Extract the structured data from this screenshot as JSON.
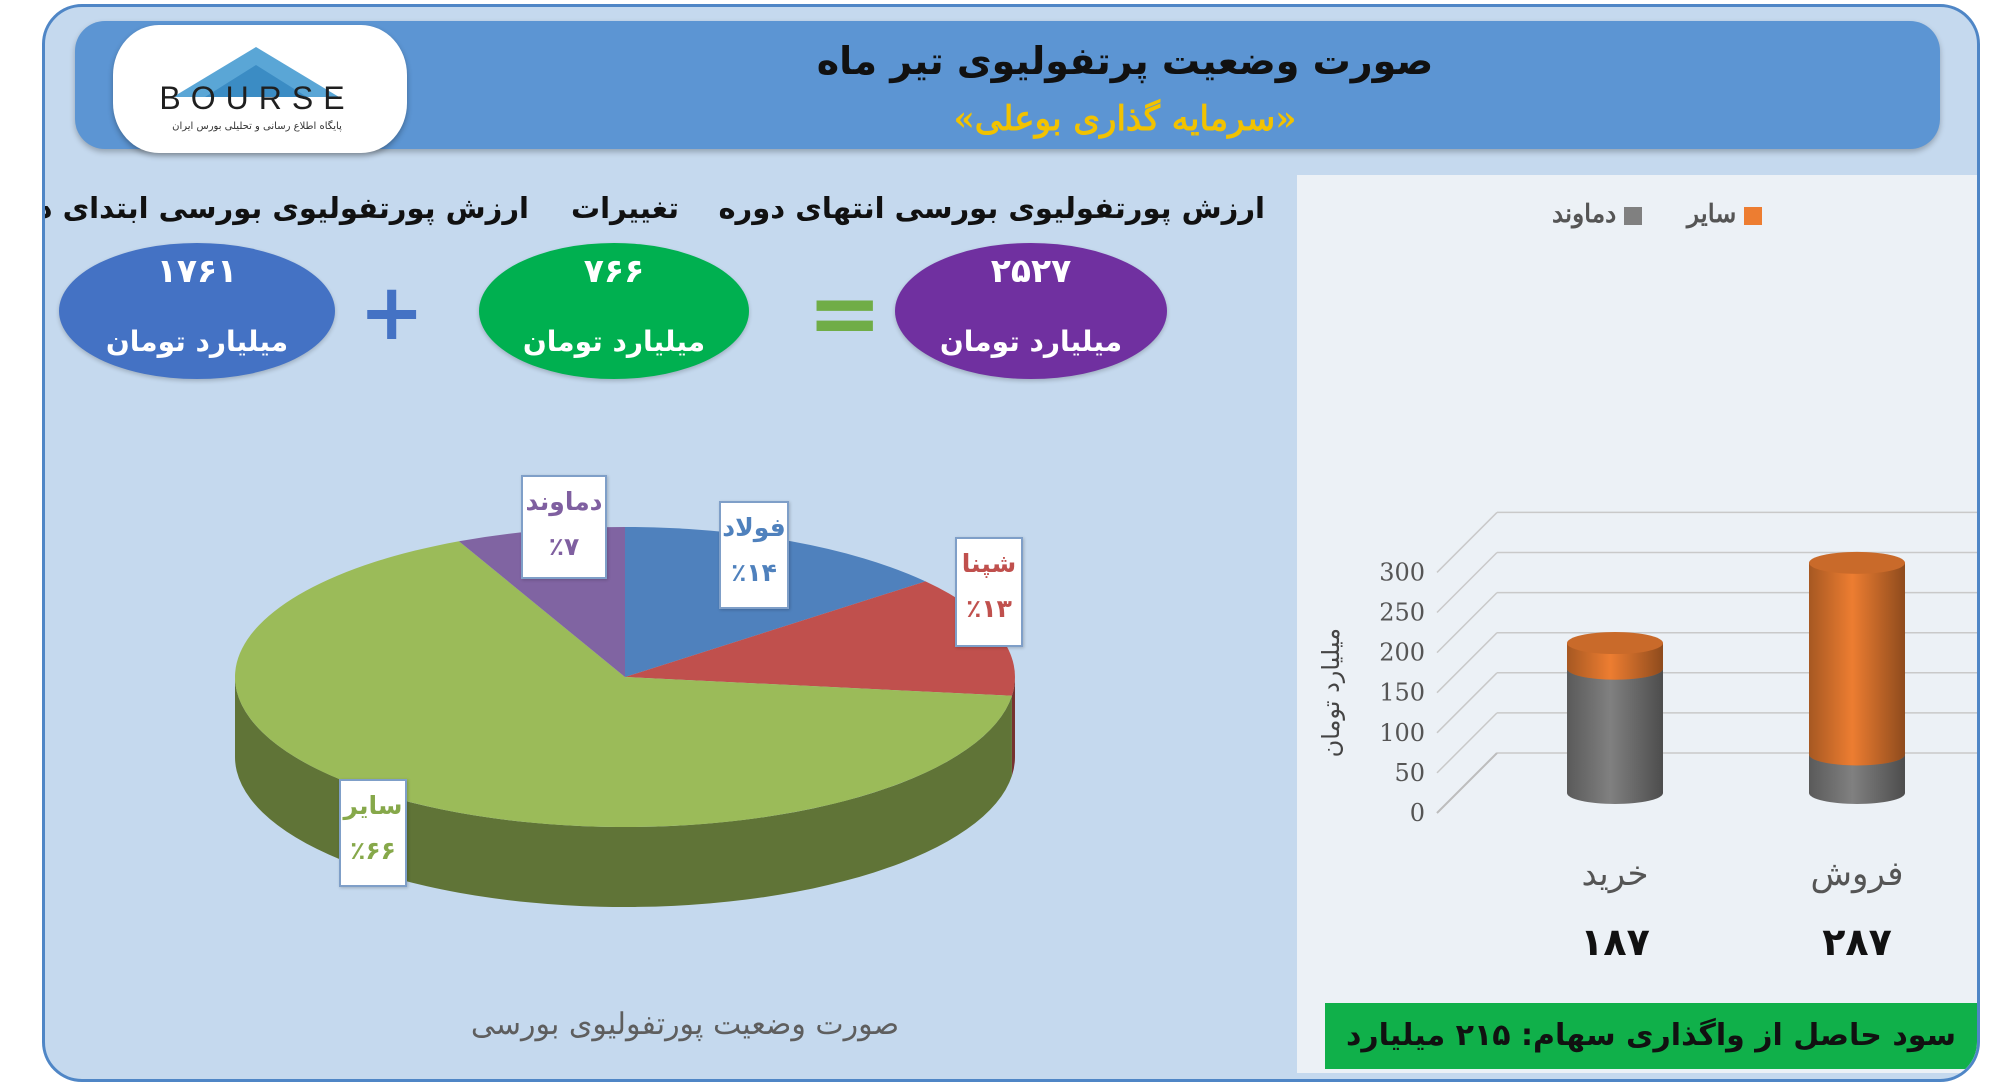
{
  "header": {
    "title": "صورت وضعیت پرتفولیوی تیر ماه",
    "subtitle": "«سرمایه گذاری بوعلی»",
    "logo_text": "BOURSE",
    "logo_tagline": "پایگاه اطلاع رسانی و تحلیلی بورس ایران"
  },
  "summary": {
    "start": {
      "label": "ارزش پورتفولیوی بورسی ابتدای دوره",
      "value": "۱۷۶۱",
      "unit": "میلیارد تومان"
    },
    "change": {
      "label": "تغییرات",
      "value": "۷۶۶",
      "unit": "میلیارد تومان"
    },
    "end": {
      "label": "ارزش پورتفولیوی بورسی انتهای دوره",
      "value": "۲۵۲۷",
      "unit": "میلیارد تومان"
    },
    "plus_symbol": "+",
    "equals_symbol": "="
  },
  "colors": {
    "start_ellipse": "#4472c4",
    "change_ellipse": "#00b050",
    "end_ellipse": "#7030a0",
    "operator": "#4472c4",
    "equals": "#70ad47"
  },
  "chart_data": [
    {
      "type": "pie",
      "title": "صورت وضعیت پورتفولیوی بورسی",
      "slices": [
        {
          "name": "فولاد",
          "value": 14,
          "label": "٪۱۴",
          "color": "#4f81bd"
        },
        {
          "name": "شپنا",
          "value": 13,
          "label": "٪۱۳",
          "color": "#c0504d"
        },
        {
          "name": "سایر",
          "value": 66,
          "label": "٪۶۶",
          "color": "#9bbb59"
        },
        {
          "name": "دماوند",
          "value": 7,
          "label": "٪۷",
          "color": "#8064a2"
        }
      ]
    },
    {
      "type": "bar",
      "stacked": true,
      "categories": [
        "خرید",
        "فروش"
      ],
      "category_totals": [
        "۱۸۷",
        "۲۸۷"
      ],
      "series": [
        {
          "name": "دماوند",
          "color": "#808080",
          "values": [
            155,
            48
          ]
        },
        {
          "name": "سایر",
          "color": "#ed7d31",
          "values": [
            32,
            239
          ]
        }
      ],
      "ylabel": "میلیارد تومان",
      "ylim": [
        0,
        300
      ],
      "yticks": [
        "0",
        "50",
        "100",
        "150",
        "200",
        "250",
        "300"
      ],
      "legend": "top",
      "grid": true,
      "footer": "سود حاصل از واگذاری سهام: ۲۱۵ میلیارد تومان"
    }
  ]
}
